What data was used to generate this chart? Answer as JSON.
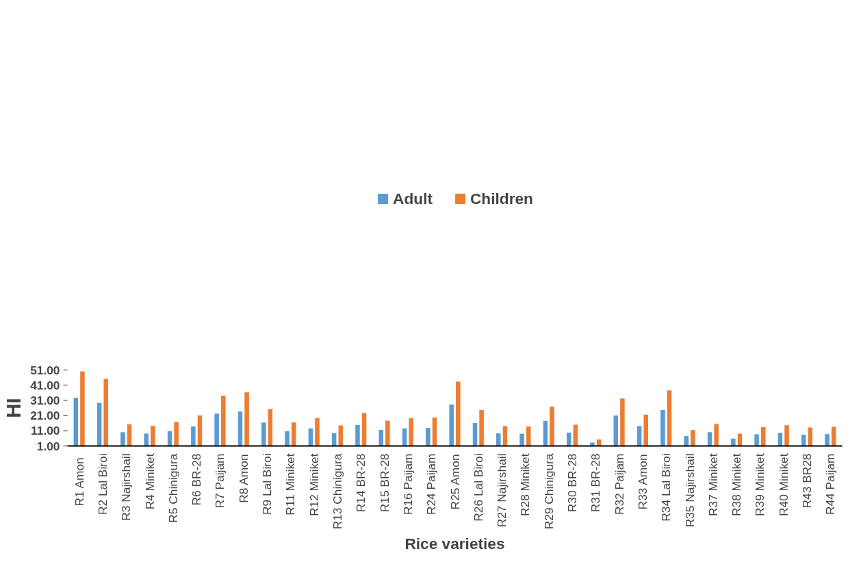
{
  "chart_data": {
    "type": "bar",
    "xlabel": "Rice varieties",
    "ylabel": "HI",
    "categories": [
      "R1  Amon",
      "R2 Lal Biroi",
      "R3 Najirshail",
      "R4 Miniket",
      "R5 Chinigura",
      "R6 BR-28",
      "R7 Paijam",
      "R8 Amon",
      "R9 Lal Biroi",
      "R11 Miniket",
      "R12 Miniket",
      "R13 Chinigura",
      "R14 BR-28",
      "R15 BR-28",
      "R16 Paijam",
      "R24 Paijam",
      "R25 Amon",
      "R26 Lal Biroi",
      "R27 Najirshail",
      "R28 Miniket",
      "R29 Chinigura",
      "R30 BR-28",
      "R31 BR-28",
      "R32 Paijam",
      "R33 Amon",
      "R34 Lal Biroi",
      "R35 Najirshail",
      "R37 Miniket",
      "R38 Miniket",
      "R39 Miniket",
      "R40 Miniket",
      "R43 BR28",
      "R44 Paijam"
    ],
    "series": [
      {
        "name": "Adult",
        "color": "#5b9bd5",
        "values": [
          32.9,
          29.6,
          10.3,
          9.4,
          11.0,
          14.1,
          22.5,
          23.9,
          16.6,
          10.9,
          12.8,
          9.7,
          15.0,
          11.8,
          12.8,
          13.1,
          28.5,
          16.3,
          9.5,
          9.3,
          17.8,
          10.0,
          3.5,
          21.3,
          14.3,
          25.0,
          7.8,
          10.3,
          6.1,
          8.9,
          9.8,
          8.7,
          9.0
        ]
      },
      {
        "name": "Children",
        "color": "#ed7d31",
        "values": [
          50.3,
          45.4,
          15.5,
          14.4,
          17.0,
          21.4,
          34.4,
          36.5,
          25.5,
          16.7,
          19.6,
          14.7,
          22.9,
          17.9,
          19.6,
          19.9,
          43.6,
          24.9,
          14.3,
          14.1,
          27.1,
          15.2,
          5.5,
          32.5,
          21.8,
          37.8,
          11.7,
          15.7,
          9.3,
          13.6,
          14.9,
          13.4,
          13.8
        ]
      }
    ],
    "ylim": [
      1,
      51
    ],
    "yticks": [
      {
        "value": 1,
        "label": "1.00"
      },
      {
        "value": 11,
        "label": "11.00"
      },
      {
        "value": 21,
        "label": "21.00"
      },
      {
        "value": 31,
        "label": "31.00"
      },
      {
        "value": 41,
        "label": "41.00"
      },
      {
        "value": 51,
        "label": "51.00"
      }
    ],
    "grid": false,
    "legend": "top"
  }
}
